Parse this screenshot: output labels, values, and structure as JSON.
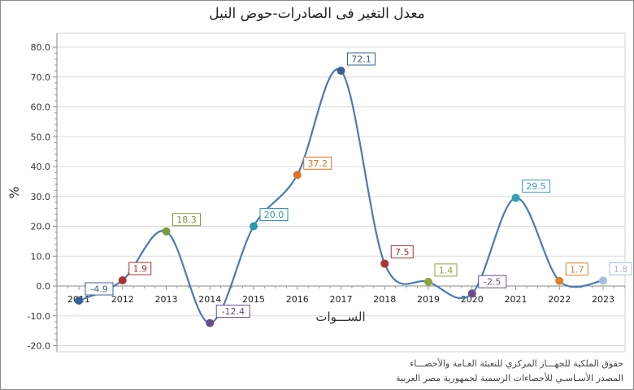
{
  "chart_data": {
    "type": "line",
    "title": "معدل التغير فى الصادرات-حوض النيل",
    "xlabel": "الســـوات",
    "ylabel": "%",
    "categories": [
      "2011",
      "2012",
      "2013",
      "2014",
      "2015",
      "2016",
      "2017",
      "2018",
      "2019",
      "2020",
      "2021",
      "2022",
      "2023"
    ],
    "values": [
      -4.9,
      1.9,
      18.3,
      -12.4,
      20.0,
      37.2,
      72.1,
      7.5,
      1.4,
      -2.5,
      29.5,
      1.7,
      1.8
    ],
    "labels": [
      "-4.9",
      "1.9",
      "18.3",
      "-12.4",
      "20.0",
      "37.2",
      "72.1",
      "7.5",
      "1.4",
      "-2.5",
      "29.5",
      "1.7",
      "1.8"
    ],
    "point_colors": [
      "#3b5f95",
      "#a83232",
      "#7c9a3c",
      "#6a4b8c",
      "#2b9aab",
      "#e07222",
      "#3b5f95",
      "#b03232",
      "#8aa83c",
      "#6a4b8c",
      "#31a2b3",
      "#e0802a",
      "#a6bcdc"
    ],
    "line_color": "#4a7ab8",
    "ylim": [
      -20,
      80
    ],
    "yticks": [
      "-20.0",
      "-10.0",
      "0.0",
      "10.0",
      "20.0",
      "30.0",
      "40.0",
      "50.0",
      "60.0",
      "70.0",
      "80.0"
    ],
    "grid": true,
    "smooth": true
  },
  "footer": {
    "line1": "حقوق الملكية للجهـــاز المركزي للتعبئة العـامة والأحصـــاء",
    "line2": "المصدر الأسـاسـي للأحصاءات الرسمية لجمهورية مصر العربية"
  }
}
